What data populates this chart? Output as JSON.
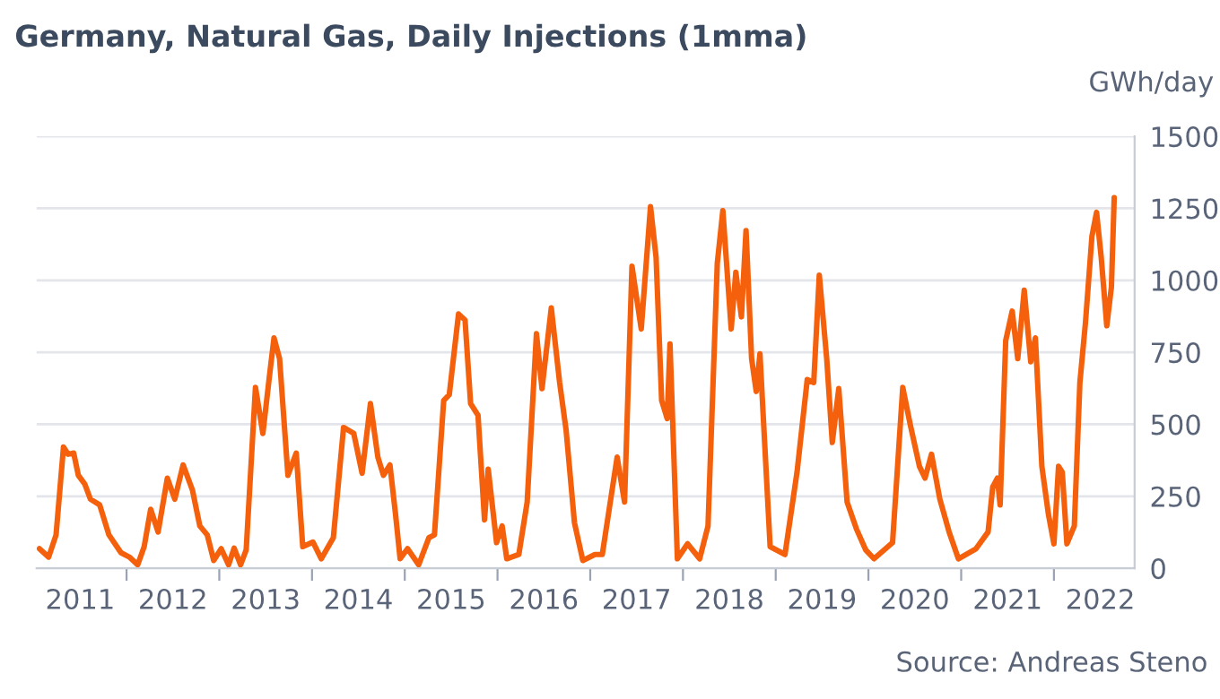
{
  "chart_data": {
    "type": "line",
    "title": "Germany, Natural Gas, Daily Injections (1mma)",
    "ylabel": "GWh/day",
    "annotations": [
      "Source: Andreas Steno"
    ],
    "x": [
      2011.06,
      2011.16,
      2011.24,
      2011.32,
      2011.37,
      2011.43,
      2011.48,
      2011.55,
      2011.61,
      2011.71,
      2011.81,
      2011.94,
      2012.03,
      2012.12,
      2012.19,
      2012.26,
      2012.34,
      2012.44,
      2012.52,
      2012.61,
      2012.71,
      2012.79,
      2012.87,
      2012.94,
      2013.02,
      2013.1,
      2013.16,
      2013.23,
      2013.29,
      2013.39,
      2013.47,
      2013.54,
      2013.59,
      2013.65,
      2013.74,
      2013.83,
      2013.9,
      2014.01,
      2014.1,
      2014.23,
      2014.34,
      2014.45,
      2014.54,
      2014.63,
      2014.71,
      2014.77,
      2014.84,
      2014.9,
      2014.95,
      2015.03,
      2015.15,
      2015.26,
      2015.32,
      2015.42,
      2015.48,
      2015.58,
      2015.65,
      2015.71,
      2015.79,
      2015.86,
      2015.9,
      2015.99,
      2016.05,
      2016.1,
      2016.23,
      2016.32,
      2016.42,
      2016.48,
      2016.58,
      2016.67,
      2016.74,
      2016.83,
      2016.92,
      2017.05,
      2017.13,
      2017.29,
      2017.37,
      2017.45,
      2017.55,
      2017.65,
      2017.71,
      2017.77,
      2017.83,
      2017.86,
      2017.94,
      2018.05,
      2018.18,
      2018.27,
      2018.37,
      2018.43,
      2018.52,
      2018.57,
      2018.63,
      2018.68,
      2018.74,
      2018.79,
      2018.83,
      2018.94,
      2019.1,
      2019.23,
      2019.34,
      2019.41,
      2019.47,
      2019.55,
      2019.61,
      2019.68,
      2019.77,
      2019.87,
      2019.97,
      2020.06,
      2020.26,
      2020.37,
      2020.45,
      2020.55,
      2020.61,
      2020.68,
      2020.77,
      2020.87,
      2020.97,
      2021.16,
      2021.29,
      2021.34,
      2021.39,
      2021.42,
      2021.48,
      2021.55,
      2021.61,
      2021.68,
      2021.75,
      2021.8,
      2021.87,
      2021.94,
      2022.0,
      2022.05,
      2022.09,
      2022.14,
      2022.22,
      2022.28,
      2022.34,
      2022.41,
      2022.46,
      2022.51,
      2022.57,
      2022.62,
      2022.65
    ],
    "series": [
      {
        "color": "#f4600c",
        "values": [
          68,
          39,
          116,
          421,
          396,
          400,
          323,
          292,
          240,
          220,
          116,
          54,
          39,
          12,
          75,
          205,
          126,
          313,
          240,
          359,
          272,
          147,
          116,
          27,
          68,
          12,
          70,
          12,
          64,
          628,
          468,
          665,
          800,
          728,
          323,
          400,
          75,
          91,
          33,
          106,
          489,
          468,
          330,
          572,
          386,
          323,
          359,
          189,
          33,
          68,
          12,
          106,
          116,
          583,
          603,
          883,
          862,
          572,
          531,
          168,
          344,
          89,
          147,
          33,
          48,
          230,
          815,
          624,
          904,
          645,
          479,
          158,
          27,
          48,
          48,
          386,
          230,
          1049,
          831,
          1256,
          1080,
          583,
          520,
          779,
          33,
          85,
          33,
          147,
          1059,
          1242,
          831,
          1028,
          873,
          1173,
          728,
          614,
          745,
          75,
          48,
          334,
          655,
          645,
          1018,
          728,
          437,
          624,
          230,
          137,
          64,
          33,
          89,
          628,
          500,
          354,
          313,
          396,
          240,
          126,
          33,
          68,
          126,
          282,
          313,
          220,
          790,
          893,
          728,
          966,
          717,
          800,
          354,
          189,
          85,
          354,
          334,
          85,
          147,
          645,
          852,
          1153,
          1236,
          1080,
          842,
          977,
          1287
        ]
      }
    ],
    "xlim": [
      2011.03,
      2022.87
    ],
    "xticks": [
      {
        "value": 2011.5,
        "label": "2011"
      },
      {
        "value": 2012,
        "label": null
      },
      {
        "value": 2012.5,
        "label": "2012"
      },
      {
        "value": 2013,
        "label": null
      },
      {
        "value": 2013.5,
        "label": "2013"
      },
      {
        "value": 2014,
        "label": null
      },
      {
        "value": 2014.5,
        "label": "2014"
      },
      {
        "value": 2015,
        "label": null
      },
      {
        "value": 2015.5,
        "label": "2015"
      },
      {
        "value": 2016,
        "label": null
      },
      {
        "value": 2016.5,
        "label": "2016"
      },
      {
        "value": 2017,
        "label": null
      },
      {
        "value": 2017.5,
        "label": "2017"
      },
      {
        "value": 2018,
        "label": null
      },
      {
        "value": 2018.5,
        "label": "2018"
      },
      {
        "value": 2019,
        "label": null
      },
      {
        "value": 2019.5,
        "label": "2019"
      },
      {
        "value": 2020,
        "label": null
      },
      {
        "value": 2020.5,
        "label": "2020"
      },
      {
        "value": 2021,
        "label": null
      },
      {
        "value": 2021.5,
        "label": "2021"
      },
      {
        "value": 2022,
        "label": null
      },
      {
        "value": 2022.5,
        "label": "2022"
      }
    ],
    "ylim": [
      0,
      1500
    ],
    "yticks": [
      0,
      250,
      500,
      750,
      1000,
      1250,
      1500
    ],
    "grid": "y",
    "legend": false,
    "marker": "none",
    "line_style": "solid"
  }
}
